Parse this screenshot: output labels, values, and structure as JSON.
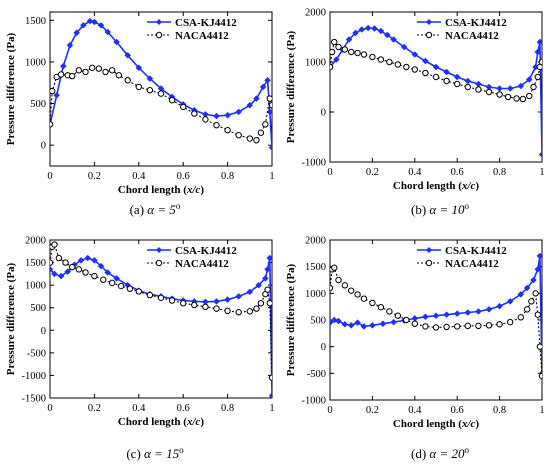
{
  "legend_entries": [
    "CSA-KJ4412",
    "NACA4412"
  ],
  "xlabel_prefix": "Chord length (",
  "xlabel_var": "x/c",
  "xlabel_suffix": ")",
  "ylabel": "Pressure difference (Pa)",
  "colors": {
    "csa": "#1f2fff",
    "naca": "#000000"
  },
  "chart_data": [
    {
      "type": "line",
      "caption": {
        "label": "(a)",
        "alpha": "α = 5",
        "deg": "o"
      },
      "xlim": [
        0,
        1
      ],
      "ylim": [
        -250,
        1600
      ],
      "xticks": [
        "0",
        "0.2",
        "0.4",
        "0.6",
        "0.8",
        "1"
      ],
      "yticks": [
        "0",
        "500",
        "1000",
        "1500"
      ],
      "legend": "top-right",
      "series": [
        {
          "name": "CSA-KJ4412",
          "marker": "diamond",
          "x": [
            0,
            0.03,
            0.06,
            0.09,
            0.12,
            0.15,
            0.18,
            0.2,
            0.23,
            0.26,
            0.3,
            0.35,
            0.4,
            0.45,
            0.5,
            0.55,
            0.6,
            0.65,
            0.7,
            0.75,
            0.8,
            0.85,
            0.9,
            0.93,
            0.96,
            0.98,
            0.99,
            1.0
          ],
          "y": [
            250,
            600,
            950,
            1200,
            1350,
            1440,
            1490,
            1480,
            1440,
            1360,
            1240,
            1080,
            930,
            800,
            680,
            580,
            490,
            420,
            370,
            350,
            360,
            400,
            480,
            560,
            700,
            780,
            400,
            -30
          ]
        },
        {
          "name": "NACA4412",
          "marker": "circle",
          "x": [
            0,
            0.01,
            0.03,
            0.05,
            0.08,
            0.1,
            0.13,
            0.16,
            0.19,
            0.22,
            0.25,
            0.28,
            0.31,
            0.35,
            0.4,
            0.45,
            0.5,
            0.55,
            0.6,
            0.65,
            0.7,
            0.75,
            0.8,
            0.85,
            0.9,
            0.93,
            0.95,
            0.97,
            0.99,
            1.0
          ],
          "y": [
            250,
            650,
            820,
            850,
            840,
            830,
            900,
            880,
            930,
            920,
            880,
            900,
            840,
            780,
            700,
            660,
            620,
            540,
            460,
            380,
            310,
            240,
            180,
            120,
            80,
            60,
            150,
            250,
            560,
            480
          ]
        }
      ]
    },
    {
      "type": "line",
      "caption": {
        "label": "(b)",
        "alpha": "α = 10",
        "deg": "o"
      },
      "xlim": [
        0,
        1
      ],
      "ylim": [
        -1000,
        2000
      ],
      "xticks": [
        "0",
        "0.2",
        "0.4",
        "0.6",
        "0.8",
        "1"
      ],
      "yticks": [
        "-1000",
        "0",
        "1000",
        "2000"
      ],
      "legend": "top-right",
      "series": [
        {
          "name": "CSA-KJ4412",
          "marker": "diamond",
          "x": [
            0,
            0.03,
            0.06,
            0.09,
            0.12,
            0.15,
            0.18,
            0.21,
            0.24,
            0.27,
            0.3,
            0.35,
            0.4,
            0.45,
            0.5,
            0.55,
            0.6,
            0.65,
            0.7,
            0.75,
            0.8,
            0.85,
            0.9,
            0.94,
            0.97,
            0.98,
            0.99,
            1.0
          ],
          "y": [
            900,
            1050,
            1250,
            1450,
            1580,
            1650,
            1680,
            1670,
            1620,
            1540,
            1450,
            1300,
            1150,
            1020,
            900,
            800,
            700,
            620,
            560,
            500,
            470,
            470,
            520,
            650,
            900,
            1200,
            1400,
            -850
          ]
        },
        {
          "name": "NACA4412",
          "marker": "circle",
          "x": [
            0,
            0.01,
            0.02,
            0.04,
            0.07,
            0.1,
            0.13,
            0.16,
            0.2,
            0.24,
            0.28,
            0.32,
            0.36,
            0.4,
            0.45,
            0.5,
            0.55,
            0.6,
            0.65,
            0.7,
            0.75,
            0.8,
            0.84,
            0.88,
            0.91,
            0.94,
            0.96,
            0.98,
            0.99,
            1.0
          ],
          "y": [
            900,
            1200,
            1400,
            1300,
            1250,
            1200,
            1180,
            1150,
            1100,
            1050,
            1000,
            950,
            900,
            850,
            780,
            700,
            620,
            560,
            500,
            450,
            400,
            350,
            300,
            270,
            260,
            320,
            500,
            700,
            900,
            1000
          ]
        }
      ]
    },
    {
      "type": "line",
      "caption": {
        "label": "(c)",
        "alpha": "α = 15",
        "deg": "o"
      },
      "xlim": [
        0,
        1
      ],
      "ylim": [
        -1500,
        2000
      ],
      "xticks": [
        "0",
        "0.2",
        "0.4",
        "0.6",
        "0.8",
        "1"
      ],
      "yticks": [
        "-1500",
        "-1000",
        "-500",
        "0",
        "500",
        "1000",
        "1500",
        "2000"
      ],
      "legend": "top-right",
      "series": [
        {
          "name": "CSA-KJ4412",
          "marker": "diamond",
          "x": [
            0,
            0.02,
            0.05,
            0.08,
            0.11,
            0.14,
            0.17,
            0.2,
            0.23,
            0.26,
            0.3,
            0.35,
            0.4,
            0.45,
            0.5,
            0.55,
            0.6,
            0.65,
            0.7,
            0.75,
            0.8,
            0.85,
            0.9,
            0.94,
            0.97,
            0.98,
            0.99,
            1.0
          ],
          "y": [
            1350,
            1250,
            1200,
            1300,
            1450,
            1550,
            1600,
            1550,
            1420,
            1280,
            1150,
            1000,
            880,
            800,
            750,
            700,
            660,
            640,
            630,
            640,
            680,
            750,
            850,
            1000,
            1150,
            1350,
            1600,
            -1450
          ]
        },
        {
          "name": "NACA4412",
          "marker": "circle",
          "x": [
            0,
            0.01,
            0.02,
            0.04,
            0.07,
            0.1,
            0.13,
            0.16,
            0.2,
            0.24,
            0.28,
            0.32,
            0.36,
            0.4,
            0.45,
            0.5,
            0.55,
            0.6,
            0.65,
            0.7,
            0.75,
            0.8,
            0.85,
            0.9,
            0.93,
            0.95,
            0.97,
            0.98,
            0.99,
            1.0
          ],
          "y": [
            1500,
            1850,
            1900,
            1600,
            1500,
            1400,
            1350,
            1280,
            1200,
            1120,
            1050,
            980,
            920,
            860,
            780,
            720,
            660,
            600,
            560,
            520,
            480,
            430,
            400,
            420,
            480,
            600,
            800,
            900,
            600,
            -1050
          ]
        }
      ]
    },
    {
      "type": "line",
      "caption": {
        "label": "(d)",
        "alpha": "α = 20",
        "deg": "o"
      },
      "xlim": [
        0,
        1
      ],
      "ylim": [
        -1000,
        2000
      ],
      "xticks": [
        "0",
        "0.2",
        "0.4",
        "0.6",
        "0.8",
        "1"
      ],
      "yticks": [
        "-1000",
        "-500",
        "0",
        "500",
        "1000",
        "1500",
        "2000"
      ],
      "legend": "top-right",
      "series": [
        {
          "name": "CSA-KJ4412",
          "marker": "diamond",
          "x": [
            0,
            0.02,
            0.04,
            0.07,
            0.1,
            0.13,
            0.16,
            0.2,
            0.25,
            0.3,
            0.35,
            0.4,
            0.45,
            0.5,
            0.55,
            0.6,
            0.65,
            0.7,
            0.75,
            0.8,
            0.85,
            0.9,
            0.93,
            0.96,
            0.98,
            0.99,
            1.0
          ],
          "y": [
            450,
            500,
            480,
            420,
            400,
            450,
            380,
            400,
            430,
            460,
            490,
            530,
            560,
            580,
            600,
            620,
            640,
            660,
            700,
            760,
            850,
            980,
            1100,
            1250,
            1450,
            1700,
            -500
          ]
        },
        {
          "name": "NACA4412",
          "marker": "circle",
          "x": [
            0,
            0.01,
            0.02,
            0.04,
            0.07,
            0.1,
            0.13,
            0.16,
            0.2,
            0.24,
            0.28,
            0.32,
            0.36,
            0.4,
            0.45,
            0.5,
            0.55,
            0.6,
            0.65,
            0.7,
            0.75,
            0.8,
            0.85,
            0.9,
            0.93,
            0.95,
            0.97,
            0.98,
            0.99,
            1.0
          ],
          "y": [
            1100,
            1450,
            1480,
            1250,
            1150,
            1050,
            980,
            900,
            820,
            740,
            660,
            580,
            500,
            430,
            380,
            360,
            370,
            380,
            390,
            390,
            400,
            420,
            460,
            550,
            700,
            850,
            1000,
            600,
            0,
            -550
          ]
        }
      ]
    }
  ]
}
